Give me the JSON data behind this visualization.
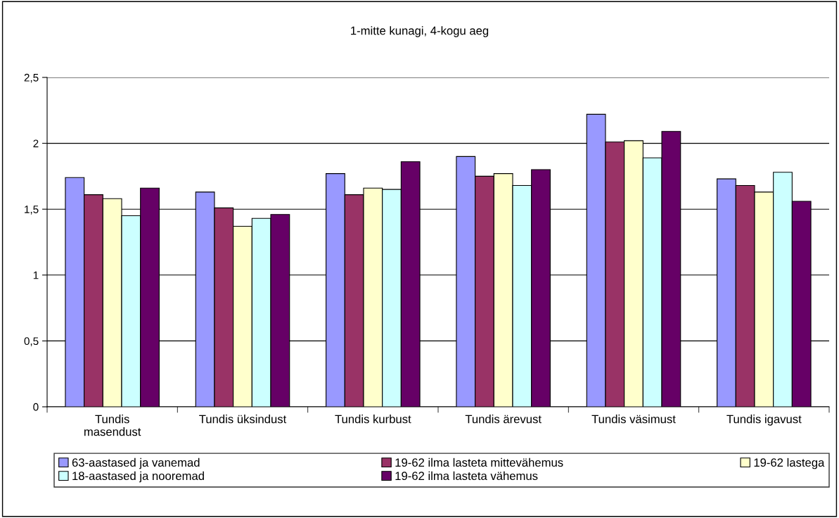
{
  "chart_data": {
    "type": "bar",
    "title": "1-mitte kunagi, 4-kogu aeg",
    "categories": [
      "Tundis\nmasendust",
      "Tundis üksindust",
      "Tundis kurbust",
      "Tundis ärevust",
      "Tundis väsimust",
      "Tundis igavust"
    ],
    "series": [
      {
        "name": "63-aastased ja vanemad",
        "color": "#9999ff",
        "values": [
          1.74,
          1.63,
          1.77,
          1.9,
          2.22,
          1.73
        ]
      },
      {
        "name": "19-62 ilma lasteta mittevähemus",
        "color": "#993366",
        "values": [
          1.61,
          1.51,
          1.61,
          1.75,
          2.01,
          1.68
        ]
      },
      {
        "name": "19-62 lastega",
        "color": "#ffffcc",
        "values": [
          1.58,
          1.37,
          1.66,
          1.77,
          2.02,
          1.63
        ]
      },
      {
        "name": "18-aastased ja nooremad",
        "color": "#ccffff",
        "values": [
          1.45,
          1.43,
          1.65,
          1.68,
          1.89,
          1.78
        ]
      },
      {
        "name": "19-62 ilma lasteta vähemus",
        "color": "#660066",
        "values": [
          1.66,
          1.46,
          1.86,
          1.8,
          2.09,
          1.56
        ]
      }
    ],
    "ylim": [
      0,
      2.5
    ],
    "yticks": [
      0,
      {
        "value": 0.5,
        "label": "0,5"
      },
      1,
      {
        "value": 1.5,
        "label": "1,5"
      },
      2,
      {
        "value": 2.5,
        "label": "2,5"
      }
    ],
    "grid": "y",
    "legend": "bottom"
  }
}
